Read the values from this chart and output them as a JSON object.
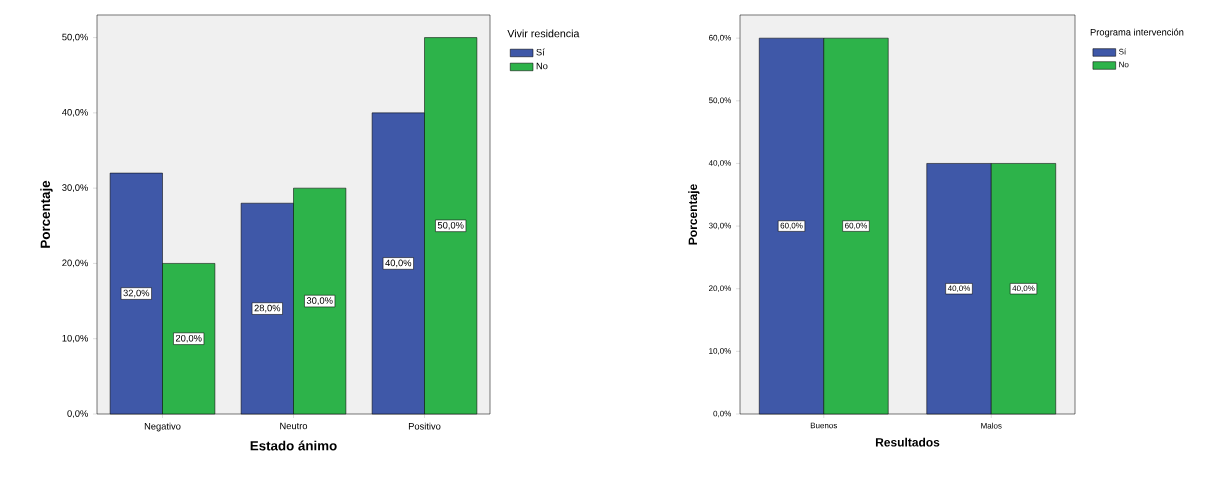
{
  "chart_data": [
    {
      "type": "bar",
      "xlabel": "Estado ánimo",
      "ylabel": "Porcentaje",
      "legend_title": "Vivir residencia",
      "legend": "right",
      "categories": [
        "Negativo",
        "Neutro",
        "Positivo"
      ],
      "series": [
        {
          "name": "Sí",
          "color": "#3f58a8",
          "values": [
            32,
            28,
            40
          ],
          "value_labels": [
            "32,0%",
            "28,0%",
            "40,0%"
          ]
        },
        {
          "name": "No",
          "color": "#2db34a",
          "values": [
            20,
            30,
            50
          ],
          "value_labels": [
            "20,0%",
            "30,0%",
            "50,0%"
          ]
        }
      ],
      "ylim": [
        0,
        53
      ],
      "yticks": [
        {
          "value": 0,
          "label": "0,0%"
        },
        {
          "value": 10,
          "label": "10,0%"
        },
        {
          "value": 20,
          "label": "20,0%"
        },
        {
          "value": 30,
          "label": "30,0%"
        },
        {
          "value": 40,
          "label": "40,0%"
        },
        {
          "value": 50,
          "label": "50,0%"
        }
      ]
    },
    {
      "type": "bar",
      "xlabel": "Resultados",
      "ylabel": "Porcentaje",
      "legend_title": "Programa intervención",
      "legend": "right",
      "categories": [
        "Buenos",
        "Malos"
      ],
      "series": [
        {
          "name": "Sí",
          "color": "#3f58a8",
          "values": [
            60,
            40
          ],
          "value_labels": [
            "60,0%",
            "40,0%"
          ]
        },
        {
          "name": "No",
          "color": "#2db34a",
          "values": [
            60,
            40
          ],
          "value_labels": [
            "60,0%",
            "40,0%"
          ]
        }
      ],
      "ylim": [
        0,
        63.7
      ],
      "yticks": [
        {
          "value": 0,
          "label": "0,0%"
        },
        {
          "value": 10,
          "label": "10,0%"
        },
        {
          "value": 20,
          "label": "20,0%"
        },
        {
          "value": 30,
          "label": "30,0%"
        },
        {
          "value": 40,
          "label": "40,0%"
        },
        {
          "value": 50,
          "label": "50,0%"
        },
        {
          "value": 60,
          "label": "60,0%"
        }
      ]
    }
  ]
}
